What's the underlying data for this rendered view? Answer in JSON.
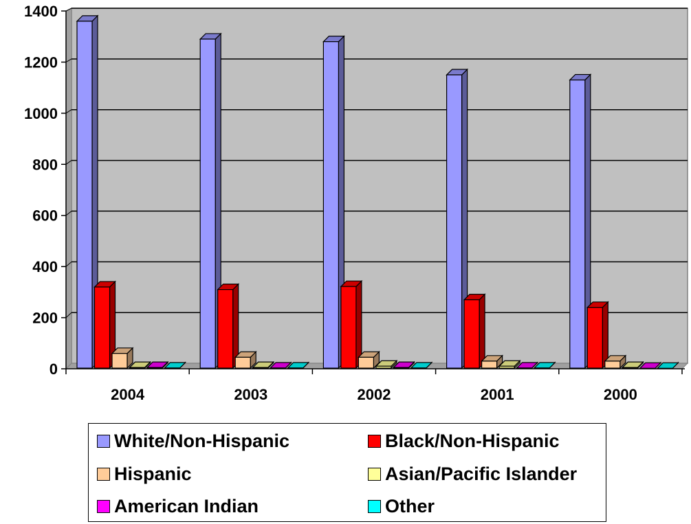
{
  "chart_data": {
    "type": "bar",
    "style": "3d-clustered-column",
    "categories": [
      "2004",
      "2003",
      "2002",
      "2001",
      "2000"
    ],
    "ylim": [
      0,
      1400
    ],
    "yticks": [
      "0",
      "200",
      "400",
      "600",
      "800",
      "1000",
      "1200",
      "1400"
    ],
    "grid": true,
    "legend_position": "bottom",
    "series": [
      {
        "name": "White/Non-Hispanic",
        "color": "#9999ff",
        "values": [
          1360,
          1290,
          1280,
          1150,
          1130
        ]
      },
      {
        "name": "Black/Non-Hispanic",
        "color": "#ff0000",
        "values": [
          320,
          310,
          322,
          270,
          240
        ]
      },
      {
        "name": "Hispanic",
        "color": "#ffcc99",
        "values": [
          60,
          45,
          45,
          30,
          30
        ]
      },
      {
        "name": "Asian/Pacific Islander",
        "color": "#ffff99",
        "values": [
          5,
          5,
          10,
          10,
          5
        ]
      },
      {
        "name": "American Indian",
        "color": "#ff00ff",
        "values": [
          5,
          3,
          5,
          3,
          2
        ]
      },
      {
        "name": "Other",
        "color": "#00ffff",
        "values": [
          3,
          3,
          3,
          3,
          2
        ]
      }
    ]
  }
}
